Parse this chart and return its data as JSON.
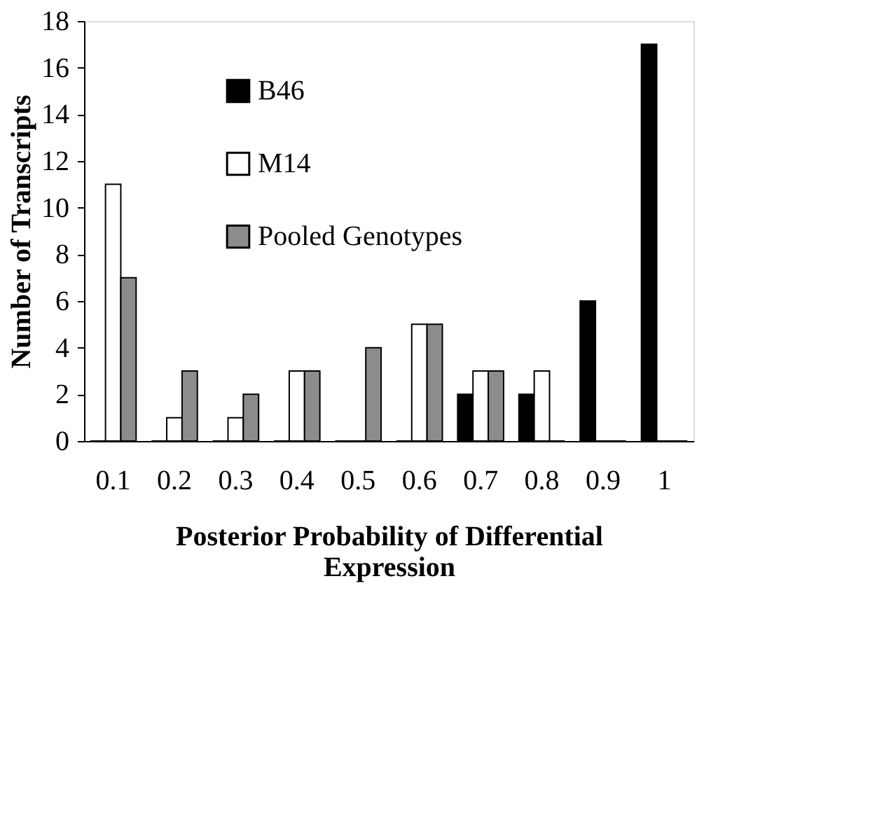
{
  "chart_data": {
    "type": "bar",
    "xlabel": "Posterior Probability of Differential Expression",
    "ylabel": "Number of Transcripts",
    "categories": [
      "0.1",
      "0.2",
      "0.3",
      "0.4",
      "0.5",
      "0.6",
      "0.7",
      "0.8",
      "0.9",
      "1"
    ],
    "series": [
      {
        "name": "B46",
        "color": "#000000",
        "values": [
          0,
          0,
          0,
          0,
          0,
          0,
          2,
          2,
          6,
          17
        ]
      },
      {
        "name": "M14",
        "color": "#ffffff",
        "values": [
          11,
          1,
          1,
          3,
          0,
          5,
          3,
          3,
          0,
          0
        ]
      },
      {
        "name": "Pooled Genotypes",
        "color": "#8c8c8c",
        "values": [
          7,
          3,
          2,
          3,
          4,
          5,
          3,
          0,
          0,
          0
        ]
      }
    ],
    "ylim": [
      0,
      18
    ],
    "yticks": [
      0,
      2,
      4,
      6,
      8,
      10,
      12,
      14,
      16,
      18
    ],
    "grid": false,
    "legend": "top left"
  }
}
